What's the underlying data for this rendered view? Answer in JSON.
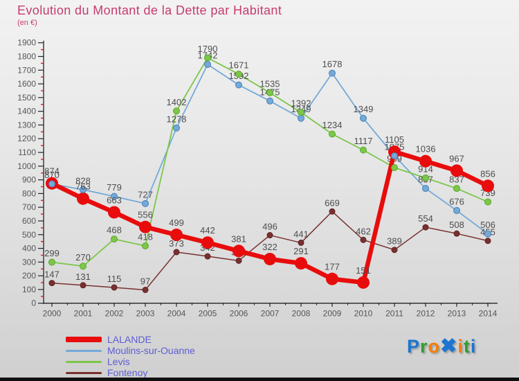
{
  "title": "Evolution du Montant de la Dette par Habitant",
  "subtitle": "(en €)",
  "chart_data": {
    "type": "line",
    "x": [
      2000,
      2001,
      2002,
      2003,
      2004,
      2005,
      2006,
      2007,
      2008,
      2009,
      2010,
      2011,
      2012,
      2013,
      2014
    ],
    "ylim": [
      0,
      1900
    ],
    "y_tick_step": 100,
    "y_minor_tick_step": 50,
    "grid": false,
    "legend_position": "bottom-left",
    "axis_color": "#222222",
    "tick_label_color": "#555555",
    "minor_tick_color": "#cc2222",
    "label_color": "#4d4d4d",
    "series": [
      {
        "name": "LALANDE",
        "color": "#e80c0c",
        "line_width": 6.5,
        "marker_radius": 9,
        "values": [
          874,
          763,
          663,
          556,
          499,
          442,
          381,
          322,
          291,
          177,
          151,
          1105,
          1036,
          967,
          856
        ]
      },
      {
        "name": "Moulins-sur-Ouanne",
        "color": "#74a9d8",
        "edge": "#4a80b4",
        "line_width": 1.8,
        "marker_radius": 4.5,
        "values": [
          870,
          828,
          779,
          727,
          1278,
          1742,
          1592,
          1475,
          1349,
          1678,
          1349,
          1075,
          837,
          676,
          506
        ]
      },
      {
        "name": "Levis",
        "color": "#7cc649",
        "edge": "#58a82a",
        "line_width": 1.8,
        "marker_radius": 4.5,
        "values": [
          299,
          270,
          468,
          418,
          1402,
          1790,
          1671,
          1535,
          1392,
          1234,
          1117,
          989,
          914,
          837,
          739
        ]
      },
      {
        "name": "Fontenoy",
        "color": "#7a3030",
        "edge": "#5c2222",
        "line_width": 1.5,
        "marker_radius": 4,
        "values": [
          147,
          131,
          115,
          97,
          373,
          342,
          310,
          496,
          441,
          669,
          462,
          389,
          554,
          508,
          455
        ]
      }
    ]
  },
  "logo": {
    "text": "Proxiti",
    "letters": [
      {
        "ch": "P",
        "color": "#1b75d1"
      },
      {
        "ch": "r",
        "color": "#2f9e33"
      },
      {
        "ch": "o",
        "color": "#f57d00"
      },
      {
        "ch": "✖",
        "color": "#1b75d1",
        "big": true
      },
      {
        "ch": "i",
        "color": "#f57d00"
      },
      {
        "ch": "t",
        "color": "#2f9e33"
      },
      {
        "ch": "i",
        "color": "#1b75d1"
      }
    ]
  }
}
